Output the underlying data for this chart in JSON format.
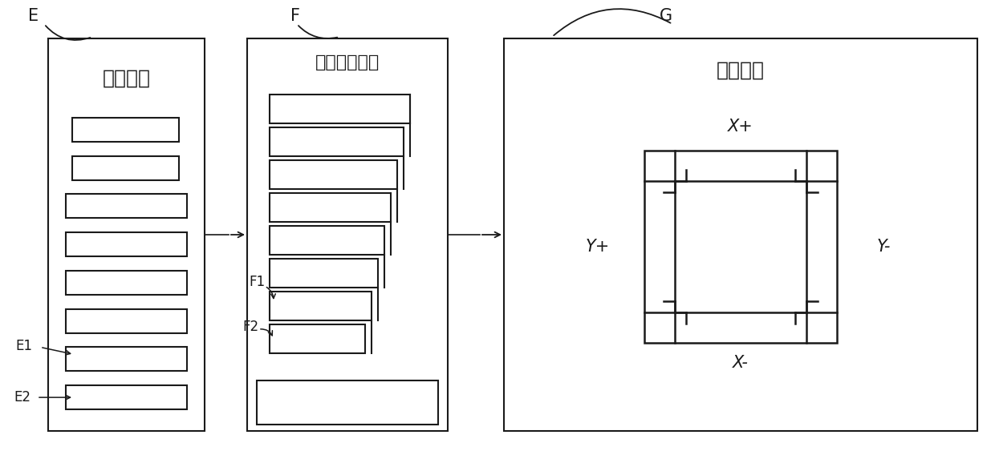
{
  "bg_color": "#ffffff",
  "line_color": "#1a1a1a",
  "label_E": "E",
  "label_F": "F",
  "label_G": "G",
  "label_E1": "E1",
  "label_E2": "E2",
  "label_F1": "F1",
  "label_F2": "F2",
  "text_E_box": "电源模块",
  "text_F_box": "通断控制模块",
  "text_G_box": "磁控装置",
  "text_Xplus": "X+",
  "text_Xminus": "X-",
  "text_Yplus": "Y+",
  "text_Yminus": "Y-"
}
